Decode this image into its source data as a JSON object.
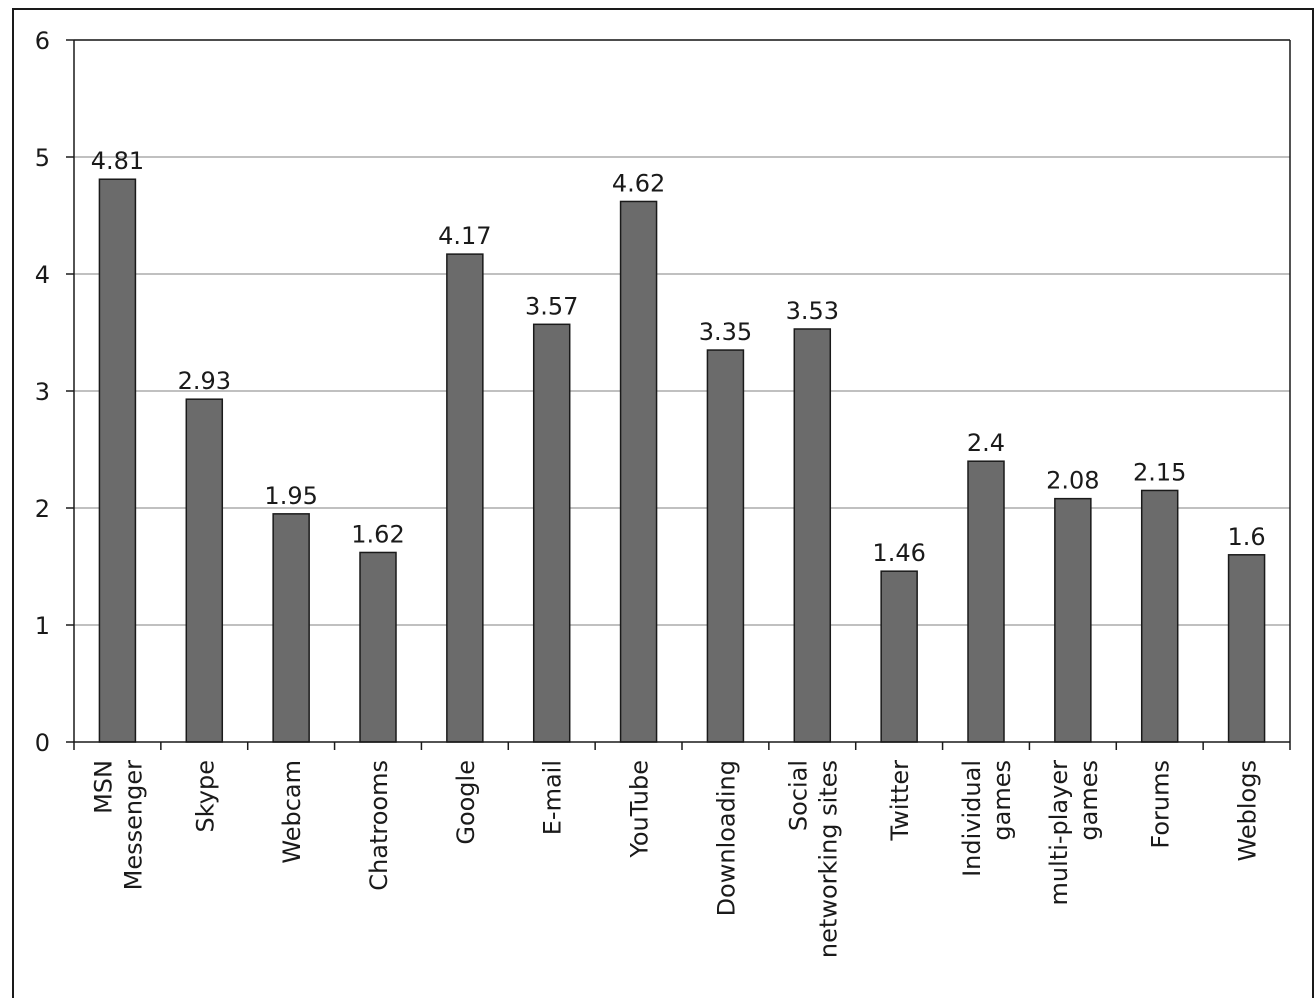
{
  "chart_data": {
    "type": "bar",
    "categories": [
      [
        "MSN",
        "Messenger"
      ],
      [
        "Skype"
      ],
      [
        "Webcam"
      ],
      [
        "Chatrooms"
      ],
      [
        "Google"
      ],
      [
        "E-mail"
      ],
      [
        "YouTube"
      ],
      [
        "Downloading"
      ],
      [
        "Social",
        "networking sites"
      ],
      [
        "Twitter"
      ],
      [
        "Individual",
        "games"
      ],
      [
        "multi-player",
        "games"
      ],
      [
        "Forums"
      ],
      [
        "Weblogs"
      ]
    ],
    "values": [
      4.81,
      2.93,
      1.95,
      1.62,
      4.17,
      3.57,
      4.62,
      3.35,
      3.53,
      1.46,
      2.4,
      2.08,
      2.15,
      1.6
    ],
    "data_labels": [
      "4.81",
      "2.93",
      "1.95",
      "1.62",
      "4.17",
      "3.57",
      "4.62",
      "3.35",
      "3.53",
      "1.46",
      "2.4",
      "2.08",
      "2.15",
      "1.6"
    ],
    "yticks": [
      "0",
      "1",
      "2",
      "3",
      "4",
      "5",
      "6"
    ],
    "ylim": [
      0,
      6
    ],
    "title": "",
    "xlabel": "",
    "ylabel": "",
    "grid": true,
    "legend": "none",
    "colors": {
      "bar": "#6b6b6b",
      "bar_edge": "#1a1a1a",
      "grid": "#9a9a9a",
      "axis": "#1a1a1a"
    }
  }
}
